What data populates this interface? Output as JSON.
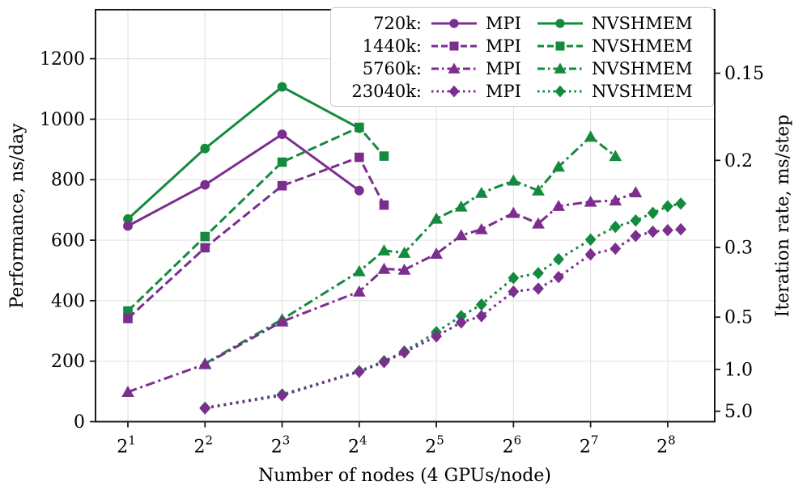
{
  "figure": {
    "xlabel": "Number of nodes (4 GPUs/node)",
    "ylabel_left": "Performance, ns/day",
    "ylabel_right": "Iteration rate, ms/step"
  },
  "legend": {
    "rows": [
      {
        "size": "720k:",
        "mpi_label": "MPI",
        "nvshmem_label": "NVSHMEM"
      },
      {
        "size": "1440k:",
        "mpi_label": "MPI",
        "nvshmem_label": "NVSHMEM"
      },
      {
        "size": "5760k:",
        "mpi_label": "MPI",
        "nvshmem_label": "NVSHMEM"
      },
      {
        "size": "23040k:",
        "mpi_label": "MPI",
        "nvshmem_label": "NVSHMEM"
      }
    ]
  },
  "chart_data": {
    "type": "line",
    "title": "",
    "xlabel": "Number of nodes (4 GPUs/node)",
    "ylabel_left": "Performance, ns/day",
    "ylabel_right": "Iteration rate, ms/step",
    "x_scale": "log2",
    "x_tick_base": "2",
    "x_tick_exponents": [
      1,
      2,
      3,
      4,
      5,
      6,
      7,
      8
    ],
    "x_tick_nodes": [
      2,
      4,
      8,
      16,
      32,
      64,
      128,
      256
    ],
    "x_range_log2": [
      0.58,
      8.61
    ],
    "ylim_left": [
      0,
      1362
    ],
    "y_ticks_left": [
      0,
      200,
      400,
      600,
      800,
      1000,
      1200
    ],
    "y_ticks_right": [
      "0.15",
      "0.2",
      "0.3",
      "0.5",
      "1.0",
      "5.0"
    ],
    "right_axis_relation": "rate_ms_per_step = 172.8 / performance_ns_per_day",
    "right_axis_constant": 172.8,
    "grid": true,
    "legend_position": "upper right",
    "colors": {
      "mpi": "#7b2e8e",
      "nvshmem": "#148a3f"
    },
    "series": [
      {
        "name": "720k NVSHMEM",
        "group": "720k",
        "impl": "nvshmem",
        "line": "solid",
        "marker": "circle",
        "points": [
          [
            2,
            670
          ],
          [
            4,
            903
          ],
          [
            8,
            1107
          ],
          [
            16,
            970
          ]
        ]
      },
      {
        "name": "1440k NVSHMEM",
        "group": "1440k",
        "impl": "nvshmem",
        "line": "dashed",
        "marker": "square",
        "points": [
          [
            2,
            366
          ],
          [
            4,
            612
          ],
          [
            8,
            858
          ],
          [
            16,
            973
          ],
          [
            20,
            878
          ]
        ]
      },
      {
        "name": "5760k NVSHMEM",
        "group": "5760k",
        "impl": "nvshmem",
        "line": "dashdot",
        "marker": "triangle",
        "points": [
          [
            4,
            192
          ],
          [
            8,
            338
          ],
          [
            16,
            497
          ],
          [
            20,
            566
          ],
          [
            24,
            558
          ],
          [
            32,
            671
          ],
          [
            40,
            711
          ],
          [
            48,
            756
          ],
          [
            64,
            797
          ],
          [
            80,
            764
          ],
          [
            96,
            843
          ],
          [
            128,
            942
          ],
          [
            160,
            878
          ]
        ]
      },
      {
        "name": "23040k NVSHMEM",
        "group": "23040k",
        "impl": "nvshmem",
        "line": "dotted",
        "marker": "diamond",
        "points": [
          [
            4,
            46
          ],
          [
            8,
            90
          ],
          [
            16,
            167
          ],
          [
            20,
            200
          ],
          [
            24,
            232
          ],
          [
            32,
            296
          ],
          [
            40,
            349
          ],
          [
            48,
            387
          ],
          [
            64,
            475
          ],
          [
            80,
            491
          ],
          [
            96,
            537
          ],
          [
            128,
            602
          ],
          [
            160,
            644
          ],
          [
            192,
            665
          ],
          [
            224,
            690
          ],
          [
            256,
            712
          ],
          [
            288,
            721
          ]
        ]
      },
      {
        "name": "720k MPI",
        "group": "720k",
        "impl": "mpi",
        "line": "solid",
        "marker": "circle",
        "points": [
          [
            2,
            647
          ],
          [
            4,
            783
          ],
          [
            8,
            950
          ],
          [
            16,
            764
          ]
        ]
      },
      {
        "name": "1440k MPI",
        "group": "1440k",
        "impl": "mpi",
        "line": "dashed",
        "marker": "square",
        "points": [
          [
            2,
            341
          ],
          [
            4,
            575
          ],
          [
            8,
            780
          ],
          [
            16,
            874
          ],
          [
            20,
            716
          ]
        ]
      },
      {
        "name": "5760k MPI",
        "group": "5760k",
        "impl": "mpi",
        "line": "dashdot",
        "marker": "triangle",
        "points": [
          [
            2,
            98
          ],
          [
            4,
            190
          ],
          [
            8,
            331
          ],
          [
            16,
            430
          ],
          [
            20,
            505
          ],
          [
            24,
            502
          ],
          [
            32,
            555
          ],
          [
            40,
            616
          ],
          [
            48,
            636
          ],
          [
            64,
            690
          ],
          [
            80,
            655
          ],
          [
            96,
            713
          ],
          [
            128,
            727
          ],
          [
            160,
            731
          ],
          [
            192,
            758
          ]
        ]
      },
      {
        "name": "23040k MPI",
        "group": "23040k",
        "impl": "mpi",
        "line": "dotted",
        "marker": "diamond",
        "points": [
          [
            4,
            44
          ],
          [
            8,
            87
          ],
          [
            16,
            165
          ],
          [
            20,
            197
          ],
          [
            24,
            229
          ],
          [
            32,
            282
          ],
          [
            40,
            328
          ],
          [
            48,
            349
          ],
          [
            64,
            430
          ],
          [
            80,
            440
          ],
          [
            96,
            478
          ],
          [
            128,
            553
          ],
          [
            160,
            572
          ],
          [
            192,
            614
          ],
          [
            224,
            628
          ],
          [
            256,
            633
          ],
          [
            288,
            636
          ]
        ]
      }
    ]
  }
}
